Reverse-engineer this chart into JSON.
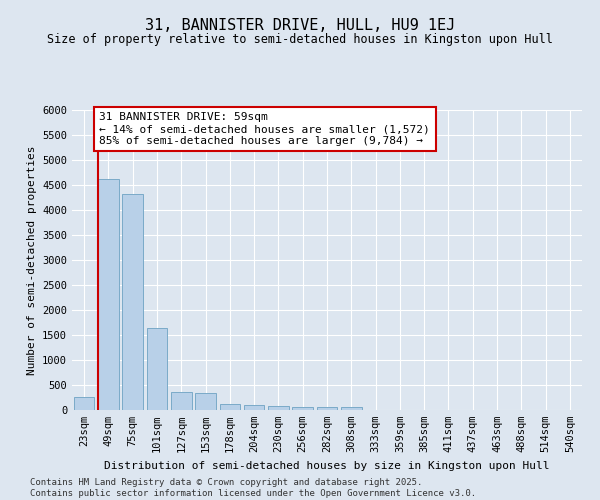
{
  "title": "31, BANNISTER DRIVE, HULL, HU9 1EJ",
  "subtitle": "Size of property relative to semi-detached houses in Kingston upon Hull",
  "xlabel": "Distribution of semi-detached houses by size in Kingston upon Hull",
  "ylabel": "Number of semi-detached properties",
  "footer_line1": "Contains HM Land Registry data © Crown copyright and database right 2025.",
  "footer_line2": "Contains public sector information licensed under the Open Government Licence v3.0.",
  "categories": [
    "23sqm",
    "49sqm",
    "75sqm",
    "101sqm",
    "127sqm",
    "153sqm",
    "178sqm",
    "204sqm",
    "230sqm",
    "256sqm",
    "282sqm",
    "308sqm",
    "333sqm",
    "359sqm",
    "385sqm",
    "411sqm",
    "437sqm",
    "463sqm",
    "488sqm",
    "514sqm",
    "540sqm"
  ],
  "values": [
    270,
    4620,
    4320,
    1640,
    360,
    340,
    130,
    100,
    80,
    60,
    55,
    55,
    0,
    0,
    0,
    0,
    0,
    0,
    0,
    0,
    0
  ],
  "bar_color": "#b8d0e8",
  "bar_edge_color": "#7aaac8",
  "red_line_color": "#cc0000",
  "annotation_title": "31 BANNISTER DRIVE: 59sqm",
  "annotation_smaller": "← 14% of semi-detached houses are smaller (1,572)",
  "annotation_larger": "85% of semi-detached houses are larger (9,784) →",
  "annotation_box_color": "#ffffff",
  "annotation_box_edge": "#cc0000",
  "bg_color": "#dde6f0",
  "ylim": [
    0,
    6000
  ],
  "yticks": [
    0,
    500,
    1000,
    1500,
    2000,
    2500,
    3000,
    3500,
    4000,
    4500,
    5000,
    5500,
    6000
  ],
  "grid_color": "#ffffff",
  "title_fontsize": 11,
  "subtitle_fontsize": 8.5,
  "axis_label_fontsize": 8,
  "tick_fontsize": 7.5,
  "footer_fontsize": 6.5,
  "annotation_fontsize": 8
}
